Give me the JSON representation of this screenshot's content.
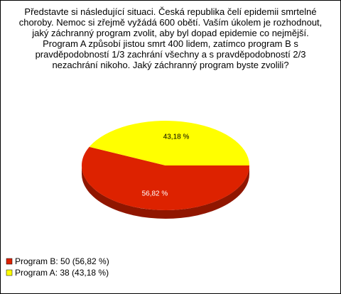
{
  "chart_data": {
    "type": "pie",
    "title": "Představte si následující situaci. Česká republika čelí epidemii smrtelné choroby. Nemoc si zřejmě vyžádá 600 obětí. Vaším úkolem je rozhodnout, jaký záchranný program zvolit, aby byl dopad epidemie co nejmější. Program A způsobí jistou smrt 400 lidem, zatímco program B s pravděpodobností 1/3 zachrání všechny a s pravděpodobností 2/3 nezachrání nikoho. Jaký záchranný program byste zvolili?",
    "categories": [
      "Program B: 50 (56,82 %)",
      "Program A: 38 (43,18 %)"
    ],
    "values": [
      56.82,
      43.18
    ],
    "value_labels": [
      "56,82 %",
      "43,18 %"
    ],
    "colors": [
      "#dd2200",
      "#ffff00"
    ]
  }
}
